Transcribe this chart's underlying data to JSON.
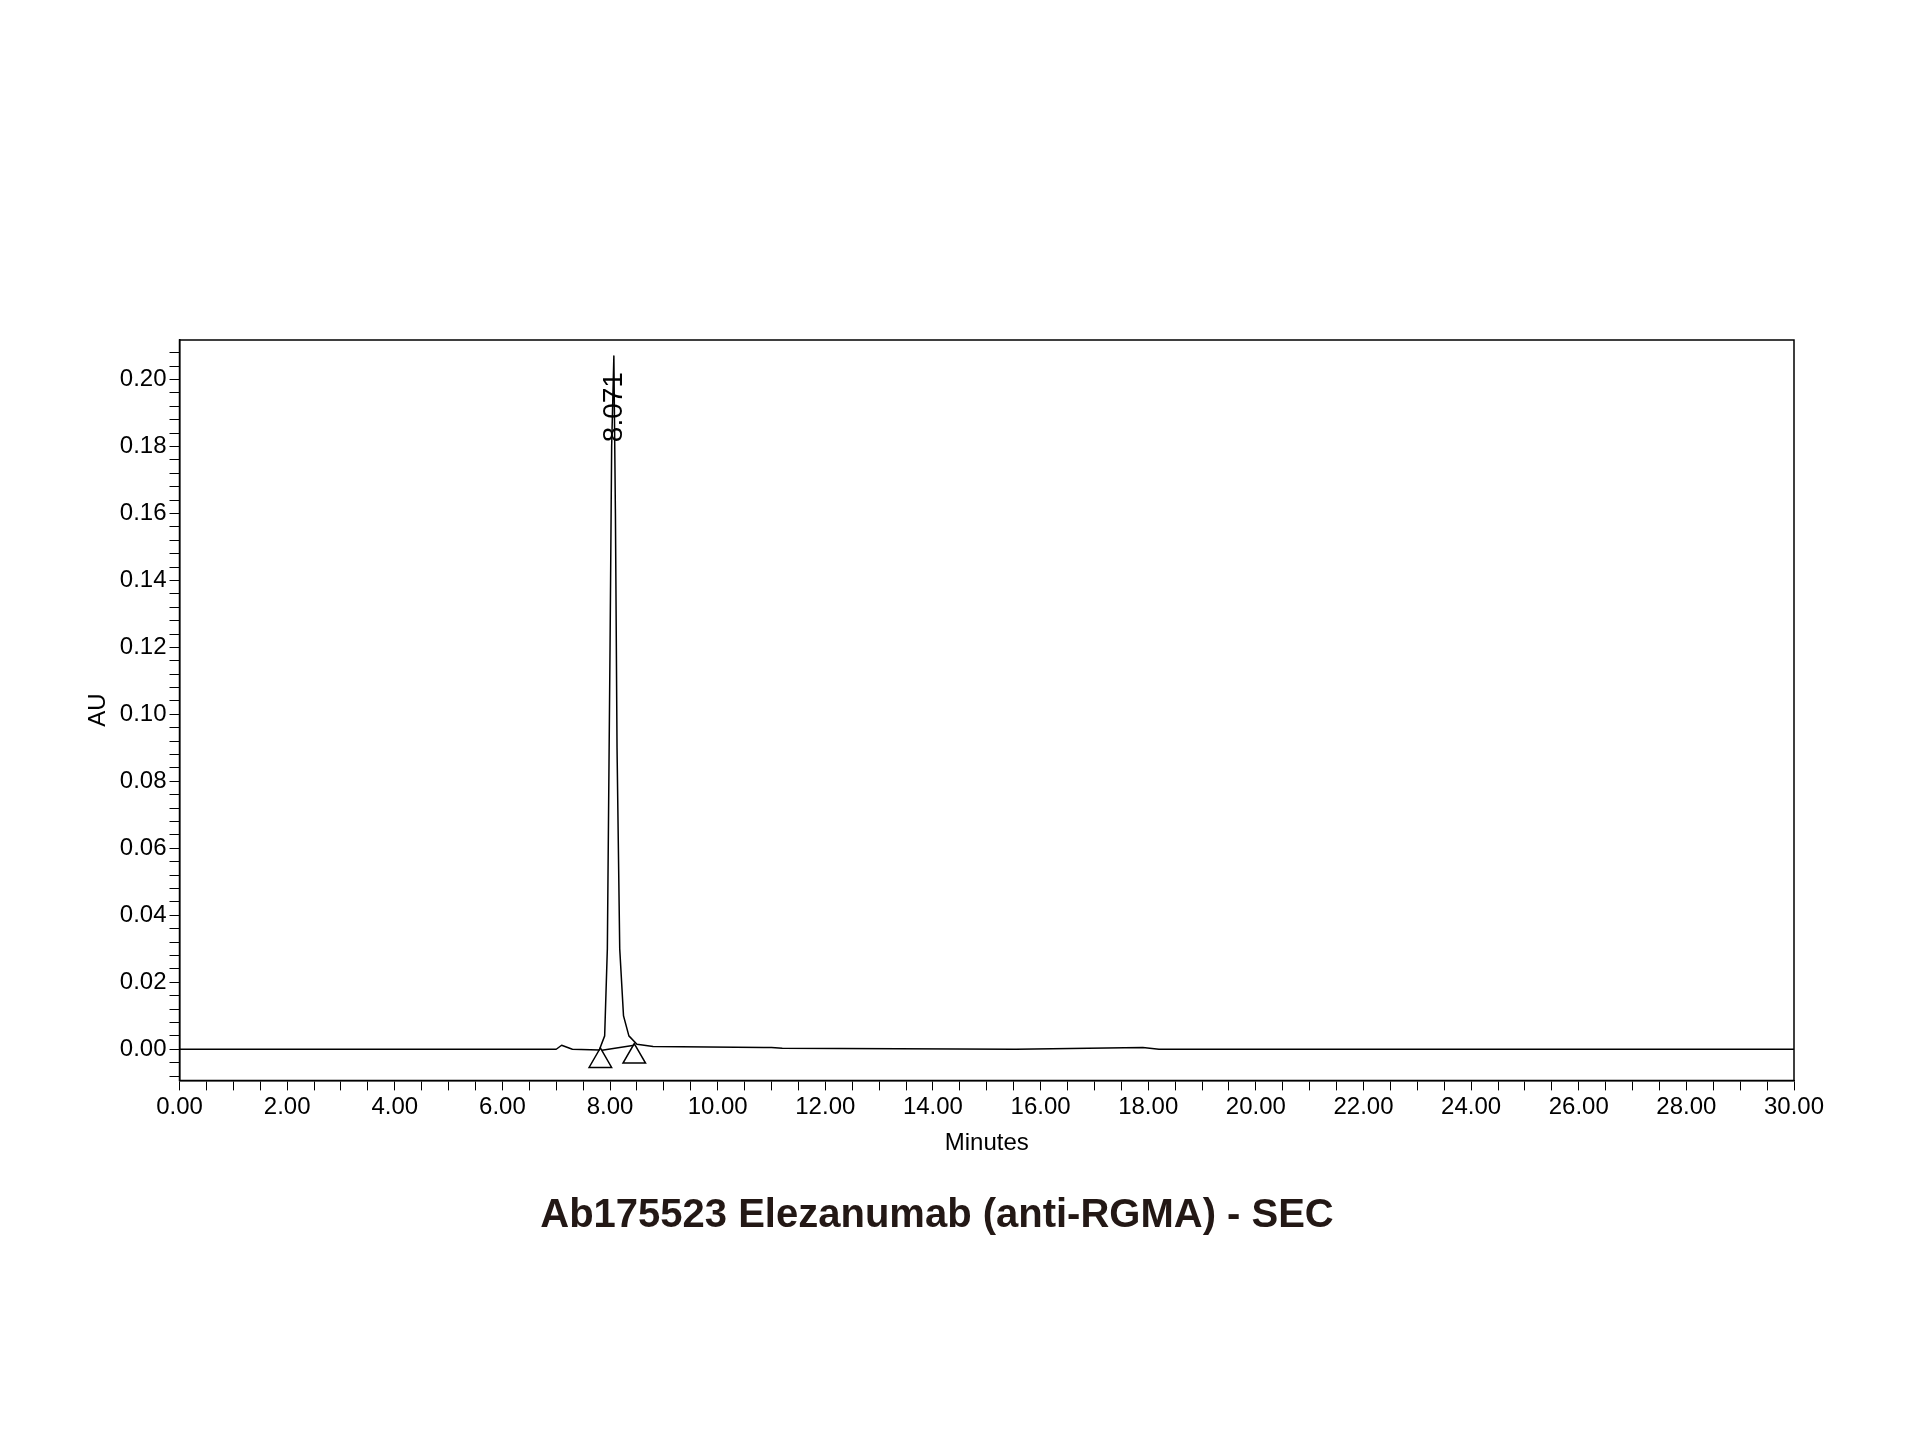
{
  "chart_data": {
    "type": "line",
    "title": "Ab175523 Elezanumab (anti-RGMA) - SEC",
    "xlabel": "Minutes",
    "ylabel": "AU",
    "xlim": [
      0,
      30
    ],
    "ylim": [
      -0.0093,
      0.2118
    ],
    "xticks": [
      {
        "value": 0,
        "label": "0.00"
      },
      {
        "value": 0.5,
        "label": null
      },
      {
        "value": 1,
        "label": null
      },
      {
        "value": 1.5,
        "label": null
      },
      {
        "value": 2,
        "label": "2.00"
      },
      {
        "value": 2.5,
        "label": null
      },
      {
        "value": 3,
        "label": null
      },
      {
        "value": 3.5,
        "label": null
      },
      {
        "value": 4,
        "label": "4.00"
      },
      {
        "value": 4.5,
        "label": null
      },
      {
        "value": 5,
        "label": null
      },
      {
        "value": 5.5,
        "label": null
      },
      {
        "value": 6,
        "label": "6.00"
      },
      {
        "value": 6.5,
        "label": null
      },
      {
        "value": 7,
        "label": null
      },
      {
        "value": 7.5,
        "label": null
      },
      {
        "value": 8,
        "label": "8.00"
      },
      {
        "value": 8.5,
        "label": null
      },
      {
        "value": 9,
        "label": null
      },
      {
        "value": 9.5,
        "label": null
      },
      {
        "value": 10,
        "label": "10.00"
      },
      {
        "value": 10.5,
        "label": null
      },
      {
        "value": 11,
        "label": null
      },
      {
        "value": 11.5,
        "label": null
      },
      {
        "value": 12,
        "label": "12.00"
      },
      {
        "value": 12.5,
        "label": null
      },
      {
        "value": 13,
        "label": null
      },
      {
        "value": 13.5,
        "label": null
      },
      {
        "value": 14,
        "label": "14.00"
      },
      {
        "value": 14.5,
        "label": null
      },
      {
        "value": 15,
        "label": null
      },
      {
        "value": 15.5,
        "label": null
      },
      {
        "value": 16,
        "label": "16.00"
      },
      {
        "value": 16.5,
        "label": null
      },
      {
        "value": 17,
        "label": null
      },
      {
        "value": 17.5,
        "label": null
      },
      {
        "value": 18,
        "label": "18.00"
      },
      {
        "value": 18.5,
        "label": null
      },
      {
        "value": 19,
        "label": null
      },
      {
        "value": 19.5,
        "label": null
      },
      {
        "value": 20,
        "label": "20.00"
      },
      {
        "value": 20.5,
        "label": null
      },
      {
        "value": 21,
        "label": null
      },
      {
        "value": 21.5,
        "label": null
      },
      {
        "value": 22,
        "label": "22.00"
      },
      {
        "value": 22.5,
        "label": null
      },
      {
        "value": 23,
        "label": null
      },
      {
        "value": 23.5,
        "label": null
      },
      {
        "value": 24,
        "label": "24.00"
      },
      {
        "value": 24.5,
        "label": null
      },
      {
        "value": 25,
        "label": null
      },
      {
        "value": 25.5,
        "label": null
      },
      {
        "value": 26,
        "label": "26.00"
      },
      {
        "value": 26.5,
        "label": null
      },
      {
        "value": 27,
        "label": null
      },
      {
        "value": 27.5,
        "label": null
      },
      {
        "value": 28,
        "label": "28.00"
      },
      {
        "value": 28.5,
        "label": null
      },
      {
        "value": 29,
        "label": null
      },
      {
        "value": 29.5,
        "label": null
      },
      {
        "value": 30,
        "label": "30.00"
      }
    ],
    "yticks": [
      {
        "value": -0.008,
        "label": null
      },
      {
        "value": -0.004,
        "label": null
      },
      {
        "value": 0,
        "label": "0.00"
      },
      {
        "value": 0.004,
        "label": null
      },
      {
        "value": 0.008,
        "label": null
      },
      {
        "value": 0.012,
        "label": null
      },
      {
        "value": 0.016,
        "label": null
      },
      {
        "value": 0.02,
        "label": "0.02"
      },
      {
        "value": 0.024,
        "label": null
      },
      {
        "value": 0.028,
        "label": null
      },
      {
        "value": 0.032,
        "label": null
      },
      {
        "value": 0.036,
        "label": null
      },
      {
        "value": 0.04,
        "label": "0.04"
      },
      {
        "value": 0.044,
        "label": null
      },
      {
        "value": 0.048,
        "label": null
      },
      {
        "value": 0.052,
        "label": null
      },
      {
        "value": 0.056,
        "label": null
      },
      {
        "value": 0.06,
        "label": "0.06"
      },
      {
        "value": 0.064,
        "label": null
      },
      {
        "value": 0.068,
        "label": null
      },
      {
        "value": 0.072,
        "label": null
      },
      {
        "value": 0.076,
        "label": null
      },
      {
        "value": 0.08,
        "label": "0.08"
      },
      {
        "value": 0.084,
        "label": null
      },
      {
        "value": 0.088,
        "label": null
      },
      {
        "value": 0.092,
        "label": null
      },
      {
        "value": 0.096,
        "label": null
      },
      {
        "value": 0.1,
        "label": "0.10"
      },
      {
        "value": 0.104,
        "label": null
      },
      {
        "value": 0.108,
        "label": null
      },
      {
        "value": 0.112,
        "label": null
      },
      {
        "value": 0.116,
        "label": null
      },
      {
        "value": 0.12,
        "label": "0.12"
      },
      {
        "value": 0.124,
        "label": null
      },
      {
        "value": 0.128,
        "label": null
      },
      {
        "value": 0.132,
        "label": null
      },
      {
        "value": 0.136,
        "label": null
      },
      {
        "value": 0.14,
        "label": "0.14"
      },
      {
        "value": 0.144,
        "label": null
      },
      {
        "value": 0.148,
        "label": null
      },
      {
        "value": 0.152,
        "label": null
      },
      {
        "value": 0.156,
        "label": null
      },
      {
        "value": 0.16,
        "label": "0.16"
      },
      {
        "value": 0.164,
        "label": null
      },
      {
        "value": 0.168,
        "label": null
      },
      {
        "value": 0.172,
        "label": null
      },
      {
        "value": 0.176,
        "label": null
      },
      {
        "value": 0.18,
        "label": "0.18"
      },
      {
        "value": 0.184,
        "label": null
      },
      {
        "value": 0.188,
        "label": null
      },
      {
        "value": 0.192,
        "label": null
      },
      {
        "value": 0.196,
        "label": null
      },
      {
        "value": 0.2,
        "label": "0.20"
      },
      {
        "value": 0.204,
        "label": null
      },
      {
        "value": 0.208,
        "label": null
      }
    ],
    "grid": false,
    "legend": false,
    "series": [
      {
        "color": "#000000",
        "marker": "none",
        "x": [
          0,
          2,
          4,
          6,
          7.0,
          7.1,
          7.2,
          7.3,
          7.8,
          7.9,
          7.95,
          8.0,
          8.03,
          8.071,
          8.1,
          8.13,
          8.18,
          8.25,
          8.35,
          8.5,
          8.8,
          11,
          11.2,
          15.5,
          17.9,
          18.2,
          30
        ],
        "values": [
          0,
          0,
          0,
          0,
          0,
          0.0012,
          0.0006,
          0,
          -0.0002,
          0.004,
          0.03,
          0.12,
          0.18,
          0.207,
          0.16,
          0.09,
          0.03,
          0.01,
          0.004,
          0.0015,
          0.0008,
          0.0005,
          0.0003,
          0,
          0.0005,
          0,
          0
        ]
      },
      {
        "color": "#000000",
        "marker": "none",
        "x": [
          7.85,
          8.45
        ],
        "values": [
          -0.0003,
          0.0012
        ]
      },
      {
        "type": "scatter",
        "color": "#000000",
        "marker": "triangle",
        "x": [
          7.82,
          8.45
        ],
        "values": [
          -0.0035,
          -0.0022
        ]
      }
    ],
    "annotations": [
      {
        "text": "8.071",
        "x": 8.071,
        "y": 0.207
      }
    ]
  }
}
